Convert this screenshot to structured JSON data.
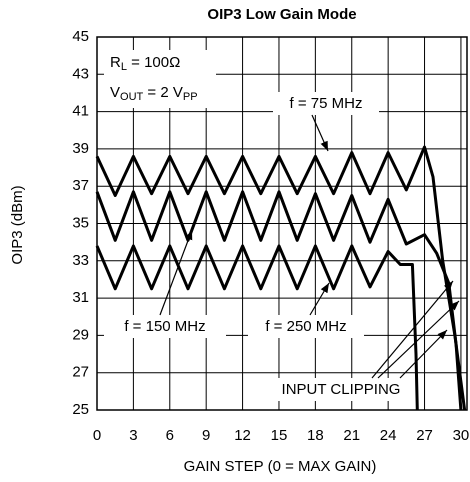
{
  "chart_data": {
    "type": "line",
    "title": "OIP3 Low Gain Mode",
    "x_label": "GAIN STEP (0 = MAX GAIN)",
    "y_label": "OIP3 (dBm)",
    "conditions": [
      {
        "parts": [
          "R",
          "L",
          " = 100Ω"
        ]
      },
      {
        "parts": [
          "V",
          "OUT",
          " = 2 V",
          "PP"
        ]
      }
    ],
    "annotations": [
      "f = 75 MHz",
      "f = 150 MHz",
      "f = 250 MHz",
      "INPUT CLIPPING"
    ],
    "xlim": [
      0,
      30.5
    ],
    "xticks": [
      0,
      3,
      6,
      9,
      12,
      15,
      18,
      21,
      24,
      27,
      30
    ],
    "ylim": [
      25,
      45
    ],
    "yticks": [
      25,
      27,
      29,
      31,
      33,
      35,
      37,
      39,
      41,
      43,
      45
    ],
    "grid": true,
    "series": [
      {
        "name": "f = 75 MHz",
        "color": "#000000",
        "x": [
          0,
          1.5,
          3,
          4.5,
          6,
          7.5,
          9,
          10.5,
          12,
          13.5,
          15,
          16.5,
          18,
          19.5,
          21,
          22.5,
          24,
          25.5,
          27,
          27.7,
          28.5,
          29.5,
          30.3
        ],
        "values": [
          38.6,
          36.5,
          38.6,
          36.6,
          38.6,
          36.6,
          38.6,
          36.6,
          38.6,
          36.6,
          38.6,
          36.6,
          38.6,
          36.6,
          38.8,
          36.6,
          38.8,
          36.8,
          39.1,
          37.5,
          33,
          29,
          25
        ]
      },
      {
        "name": "f = 150 MHz",
        "color": "#000000",
        "x": [
          0,
          1.5,
          3,
          4.5,
          6,
          7.5,
          9,
          10.5,
          12,
          13.5,
          15,
          16.5,
          18,
          19.5,
          21,
          22.5,
          24,
          25.5,
          27,
          28,
          29,
          29.6,
          30
        ],
        "values": [
          36.7,
          34.1,
          36.7,
          34.1,
          36.7,
          34.1,
          36.7,
          34.1,
          36.7,
          34.1,
          36.7,
          34.1,
          36.6,
          34.1,
          36.5,
          34.0,
          36.3,
          33.9,
          34.4,
          33.4,
          31.8,
          28.5,
          25
        ]
      },
      {
        "name": "f = 250 MHz",
        "color": "#000000",
        "x": [
          0,
          1.5,
          3,
          4.5,
          6,
          7.5,
          9,
          10.5,
          12,
          13.5,
          15,
          16.5,
          18,
          19.5,
          21,
          22.5,
          24,
          25,
          26,
          26.3,
          26.4
        ],
        "values": [
          33.8,
          31.5,
          33.8,
          31.5,
          33.8,
          31.5,
          33.8,
          31.5,
          33.8,
          31.5,
          33.8,
          31.5,
          33.8,
          31.5,
          33.8,
          31.6,
          33.5,
          32.8,
          32.8,
          28,
          25
        ]
      }
    ]
  }
}
